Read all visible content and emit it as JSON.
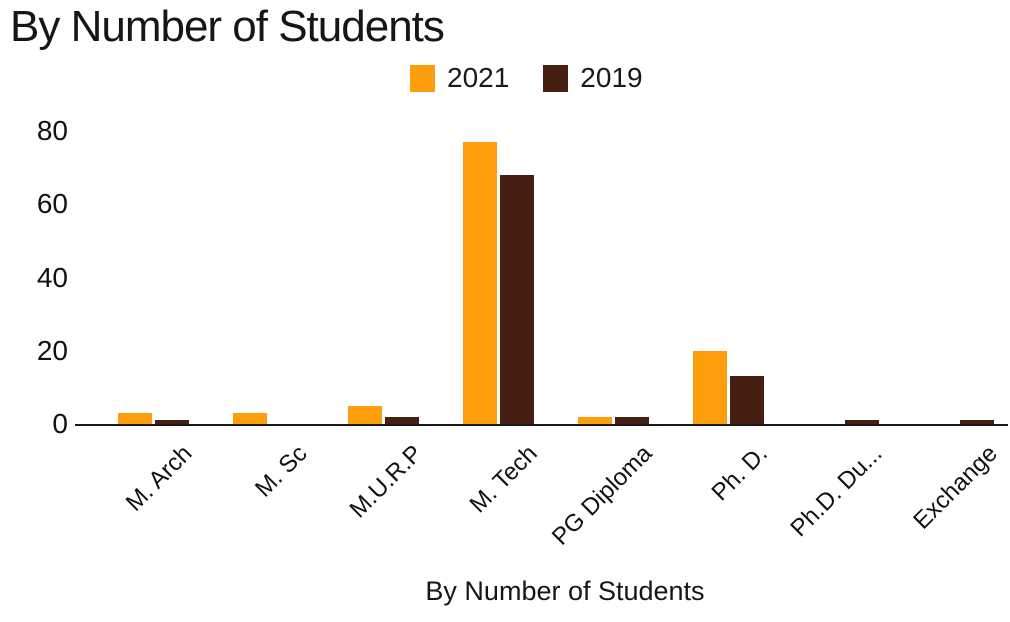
{
  "title": "By Number of Students",
  "legend": {
    "items": [
      {
        "label": "2021",
        "color": "#FF9E0D"
      },
      {
        "label": "2019",
        "color": "#471F12"
      }
    ]
  },
  "chart_data": {
    "type": "bar",
    "title": "By Number of Students",
    "xlabel": "By Number of Students",
    "ylabel": "",
    "categories": [
      "M. Arch",
      "M. Sc",
      "M.U.R.P",
      "M. Tech",
      "PG Diploma",
      "Ph. D.",
      "Ph.D. Du...",
      "Exchange"
    ],
    "series": [
      {
        "name": "2021",
        "color": "#FF9E0D",
        "values": [
          3,
          3,
          5,
          77,
          2,
          20,
          0,
          0
        ]
      },
      {
        "name": "2019",
        "color": "#471F12",
        "values": [
          1,
          0,
          2,
          68,
          2,
          13,
          1,
          1
        ]
      }
    ],
    "yticks": [
      0,
      20,
      40,
      60,
      80
    ],
    "ylim": [
      0,
      80
    ],
    "grid": false,
    "legend_position": "top",
    "axis_color": "#1a1a1a"
  }
}
